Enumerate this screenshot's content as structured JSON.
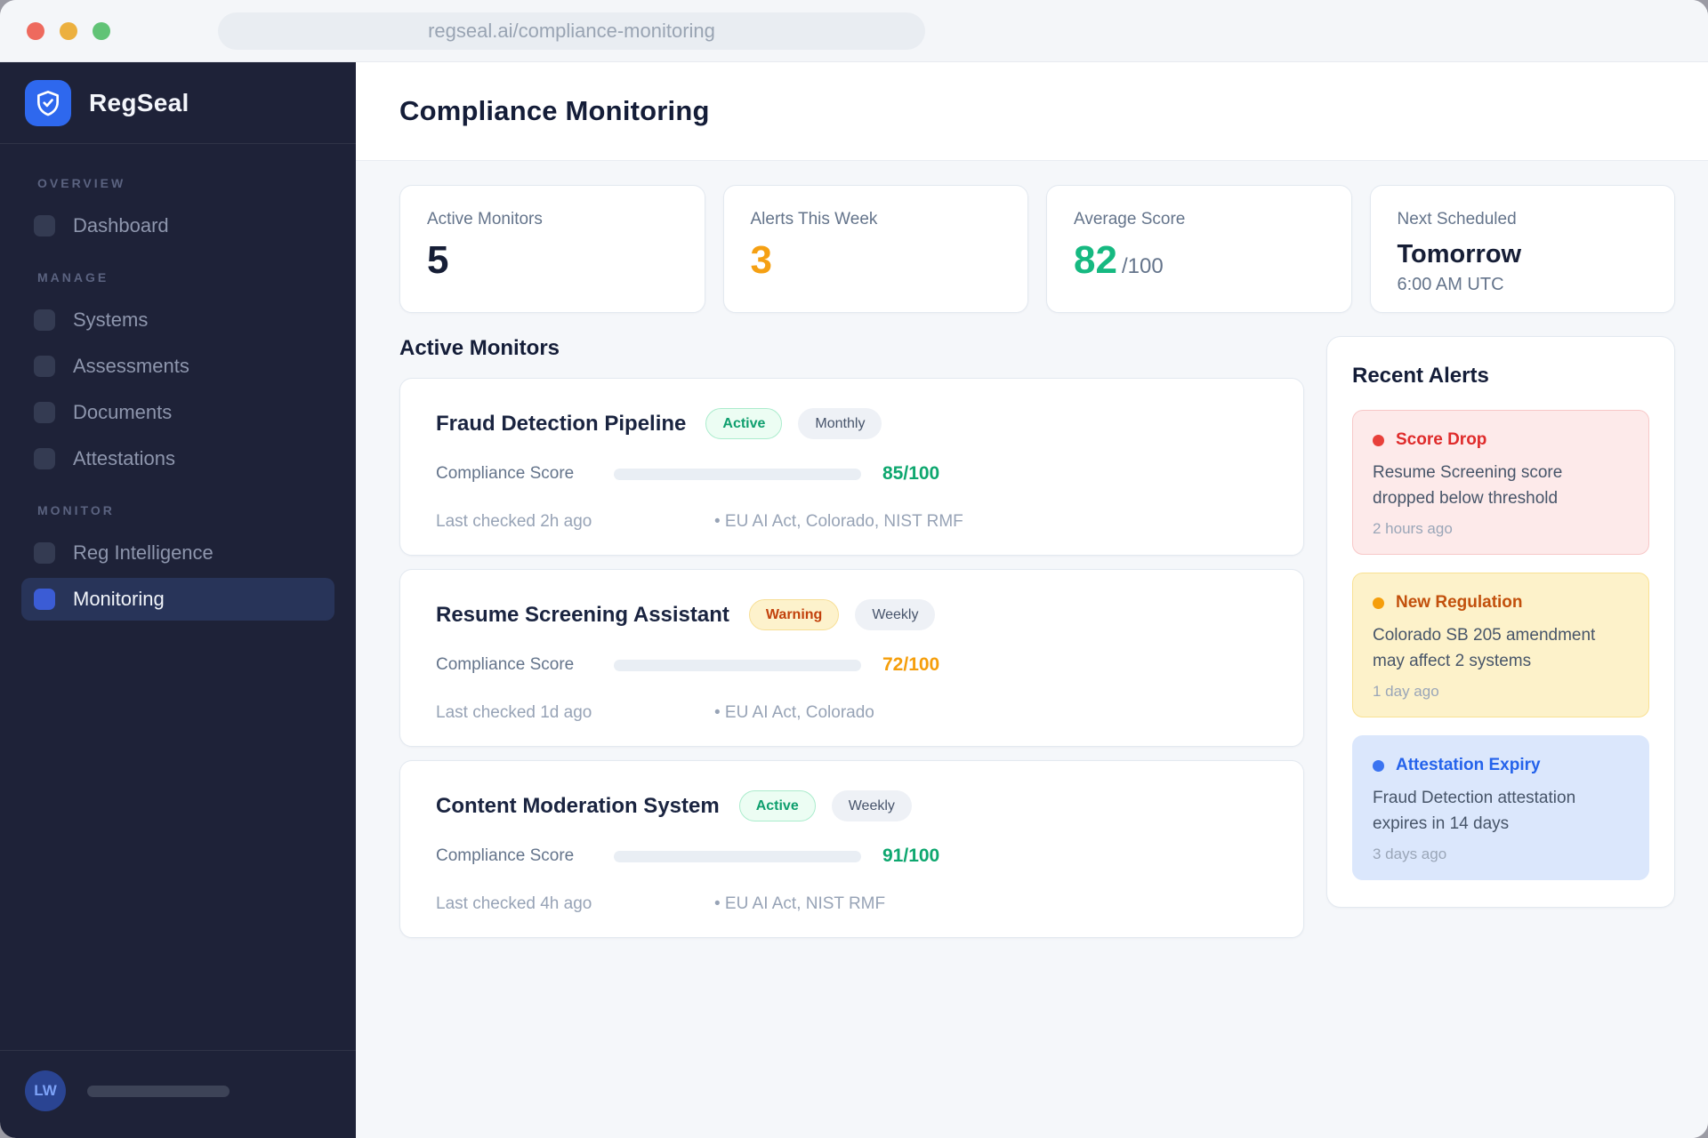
{
  "browser": {
    "url": "regseal.ai/compliance-monitoring"
  },
  "sidebar": {
    "brand": "RegSeal",
    "sections": [
      {
        "label": "OVERVIEW",
        "items": [
          {
            "label": "Dashboard"
          }
        ]
      },
      {
        "label": "MANAGE",
        "items": [
          {
            "label": "Systems"
          },
          {
            "label": "Assessments"
          },
          {
            "label": "Documents"
          },
          {
            "label": "Attestations"
          }
        ]
      },
      {
        "label": "MONITOR",
        "items": [
          {
            "label": "Reg Intelligence"
          },
          {
            "label": "Monitoring",
            "active": true
          }
        ]
      }
    ],
    "user_initials": "LW"
  },
  "header": {
    "title": "Compliance Monitoring"
  },
  "stats": [
    {
      "label": "Active Monitors",
      "value": "5"
    },
    {
      "label": "Alerts This Week",
      "value": "3"
    },
    {
      "label": "Average Score",
      "value": "82",
      "suffix": "/100"
    },
    {
      "label": "Next Scheduled",
      "value": "Tomorrow",
      "sub": "6:00 AM UTC"
    }
  ],
  "monitors": {
    "heading": "Active Monitors",
    "score_label": "Compliance Score",
    "items": [
      {
        "title": "Fraud Detection Pipeline",
        "status": "Active",
        "frequency": "Monthly",
        "score": 85,
        "score_text": "85/100",
        "last_checked": "Last checked 2h ago",
        "frameworks": "• EU AI Act, Colorado, NIST RMF"
      },
      {
        "title": "Resume Screening Assistant",
        "status": "Warning",
        "frequency": "Weekly",
        "score": 72,
        "score_text": "72/100",
        "last_checked": "Last checked 1d ago",
        "frameworks": "• EU AI Act, Colorado"
      },
      {
        "title": "Content Moderation System",
        "status": "Active",
        "frequency": "Weekly",
        "score": 91,
        "score_text": "91/100",
        "last_checked": "Last checked 4h ago",
        "frameworks": "• EU AI Act, NIST RMF"
      }
    ]
  },
  "alerts": {
    "heading": "Recent Alerts",
    "items": [
      {
        "title": "Score Drop",
        "body": "Resume Screening score dropped below threshold",
        "time": "2 hours ago"
      },
      {
        "title": "New Regulation",
        "body": "Colorado SB 205 amendment may affect 2 systems",
        "time": "1 day ago"
      },
      {
        "title": "Attestation Expiry",
        "body": "Fraud Detection attestation expires in 14 days",
        "time": "3 days ago"
      }
    ]
  },
  "colors": {
    "brand_blue": "#2e68ee",
    "sidebar_bg": "#1e2238",
    "sidebar_active_bg": "#283459",
    "success_green": "#12b483",
    "success_text": "#0ea76f",
    "warning_orange": "#f5a30b",
    "warning_badge_text": "#c2410c",
    "danger_red": "#df2b2b",
    "info_blue": "#2563eb",
    "alert_danger_bg": "#fdeaea",
    "alert_warning_bg": "#fdf2ca",
    "alert_info_bg": "#dbe7fc"
  }
}
